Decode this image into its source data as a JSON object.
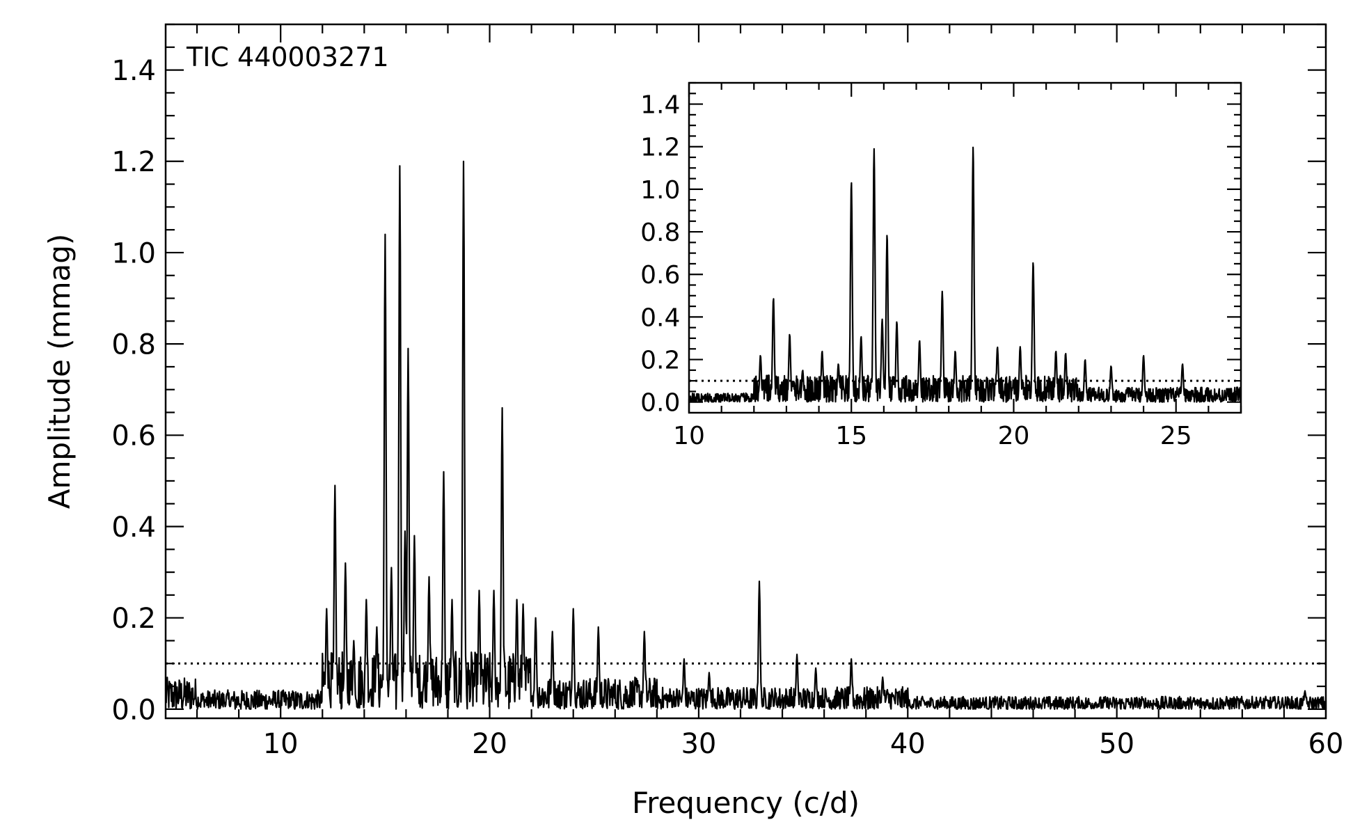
{
  "chart_data": [
    {
      "type": "line",
      "title": "",
      "annotation": "TIC 440003271",
      "xlabel": "Frequency (c/d)",
      "ylabel": "Amplitude (mmag)",
      "xlim": [
        4.5,
        60
      ],
      "ylim": [
        -0.02,
        1.5
      ],
      "xticks": [
        10,
        20,
        30,
        40,
        50,
        60
      ],
      "xtick_labels": [
        "10",
        "20",
        "30",
        "40",
        "50",
        "60"
      ],
      "yticks": [
        0.0,
        0.2,
        0.4,
        0.6,
        0.8,
        1.0,
        1.2,
        1.4
      ],
      "ytick_labels": [
        "0.0",
        "0.2",
        "0.4",
        "0.6",
        "0.8",
        "1.0",
        "1.2",
        "1.4"
      ],
      "threshold": 0.1,
      "threshold_style": "dotted",
      "series": [
        {
          "peaks": [
            {
              "x": 12.2,
              "y": 0.22
            },
            {
              "x": 12.6,
              "y": 0.49
            },
            {
              "x": 13.1,
              "y": 0.32
            },
            {
              "x": 13.5,
              "y": 0.15
            },
            {
              "x": 14.1,
              "y": 0.24
            },
            {
              "x": 14.6,
              "y": 0.18
            },
            {
              "x": 15.0,
              "y": 1.04
            },
            {
              "x": 15.3,
              "y": 0.31
            },
            {
              "x": 15.7,
              "y": 1.19
            },
            {
              "x": 15.95,
              "y": 0.39
            },
            {
              "x": 16.1,
              "y": 0.79
            },
            {
              "x": 16.4,
              "y": 0.38
            },
            {
              "x": 17.1,
              "y": 0.29
            },
            {
              "x": 17.8,
              "y": 0.52
            },
            {
              "x": 18.2,
              "y": 0.24
            },
            {
              "x": 18.75,
              "y": 1.2
            },
            {
              "x": 19.5,
              "y": 0.26
            },
            {
              "x": 20.2,
              "y": 0.26
            },
            {
              "x": 20.6,
              "y": 0.66
            },
            {
              "x": 21.3,
              "y": 0.24
            },
            {
              "x": 21.6,
              "y": 0.23
            },
            {
              "x": 22.2,
              "y": 0.2
            },
            {
              "x": 23.0,
              "y": 0.17
            },
            {
              "x": 24.0,
              "y": 0.22
            },
            {
              "x": 25.2,
              "y": 0.18
            },
            {
              "x": 27.4,
              "y": 0.17
            },
            {
              "x": 29.3,
              "y": 0.11
            },
            {
              "x": 30.5,
              "y": 0.08
            },
            {
              "x": 32.9,
              "y": 0.28
            },
            {
              "x": 34.7,
              "y": 0.12
            },
            {
              "x": 35.6,
              "y": 0.09
            },
            {
              "x": 37.3,
              "y": 0.11
            },
            {
              "x": 38.8,
              "y": 0.07
            },
            {
              "x": 59.0,
              "y": 0.04
            }
          ]
        }
      ]
    },
    {
      "type": "line",
      "title": "",
      "xlabel": "",
      "ylabel": "",
      "xlim": [
        10,
        27
      ],
      "ylim": [
        -0.05,
        1.5
      ],
      "xticks": [
        10,
        15,
        20,
        25
      ],
      "xtick_labels": [
        "10",
        "15",
        "20",
        "25"
      ],
      "yticks": [
        0.0,
        0.2,
        0.4,
        0.6,
        0.8,
        1.0,
        1.2,
        1.4
      ],
      "ytick_labels": [
        "0.0",
        "0.2",
        "0.4",
        "0.6",
        "0.8",
        "1.0",
        "1.2",
        "1.4"
      ],
      "threshold": 0.1,
      "threshold_style": "dotted"
    }
  ]
}
